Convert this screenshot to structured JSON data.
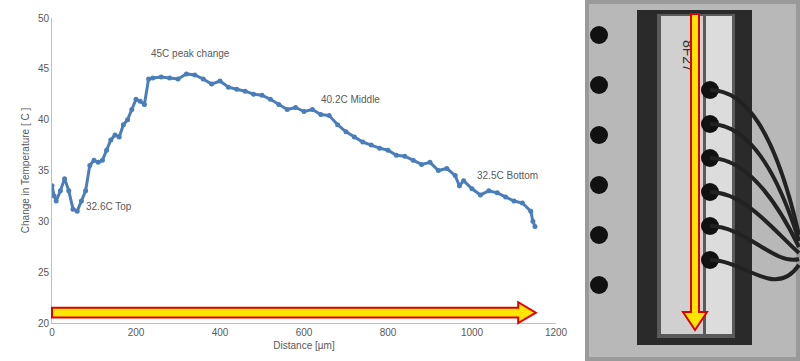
{
  "chart_data": {
    "type": "line",
    "marker": "circle",
    "color": "#4a7ebb",
    "x_label": "Distance [µm]",
    "y_label": "Change in Temperature [ C ]",
    "x": [
      0,
      5,
      10,
      20,
      30,
      40,
      50,
      60,
      70,
      80,
      90,
      100,
      110,
      120,
      130,
      140,
      150,
      160,
      170,
      180,
      190,
      200,
      210,
      220,
      230,
      240,
      260,
      280,
      300,
      320,
      340,
      360,
      380,
      400,
      420,
      440,
      460,
      480,
      500,
      520,
      540,
      560,
      580,
      600,
      620,
      640,
      660,
      680,
      700,
      720,
      740,
      760,
      780,
      800,
      820,
      840,
      860,
      880,
      900,
      920,
      940,
      960,
      970,
      980,
      1000,
      1020,
      1040,
      1060,
      1080,
      1100,
      1120,
      1140,
      1145,
      1150
    ],
    "values": [
      33.5,
      32.5,
      32.0,
      33.0,
      34.2,
      33.0,
      31.2,
      31.0,
      32.0,
      33.0,
      35.5,
      36.0,
      35.8,
      36.0,
      37.0,
      38.0,
      38.5,
      38.3,
      39.5,
      40.0,
      41.0,
      42.0,
      41.8,
      41.5,
      44.0,
      44.1,
      44.2,
      44.1,
      44.0,
      44.5,
      44.4,
      44.0,
      43.5,
      43.8,
      43.2,
      43.0,
      42.8,
      42.5,
      42.4,
      42.0,
      41.5,
      41.0,
      41.2,
      40.8,
      41.0,
      40.5,
      40.4,
      39.5,
      38.8,
      38.3,
      37.8,
      37.5,
      37.2,
      37.0,
      36.5,
      36.4,
      36.0,
      35.6,
      35.8,
      35.0,
      35.2,
      34.5,
      33.5,
      34.0,
      33.2,
      32.6,
      33.0,
      32.8,
      32.4,
      32.0,
      31.8,
      31.0,
      30.0,
      29.5
    ],
    "xlim": [
      0,
      1200
    ],
    "xticks": [
      0,
      200,
      400,
      600,
      800,
      1000,
      1200
    ],
    "ylim": [
      20,
      50
    ],
    "yticks": [
      20,
      25,
      30,
      35,
      40,
      45,
      50
    ],
    "grid": false,
    "annotations": [
      {
        "text": "45C peak change",
        "x": 330,
        "y": 46.5
      },
      {
        "text": "40.2C Middle",
        "x": 710,
        "y": 42
      },
      {
        "text": "32.6C Top",
        "x": 135,
        "y": 31.5
      },
      {
        "text": "32.5C Bottom",
        "x": 1085,
        "y": 34.5
      }
    ]
  },
  "photo": {
    "label": "8F27"
  }
}
